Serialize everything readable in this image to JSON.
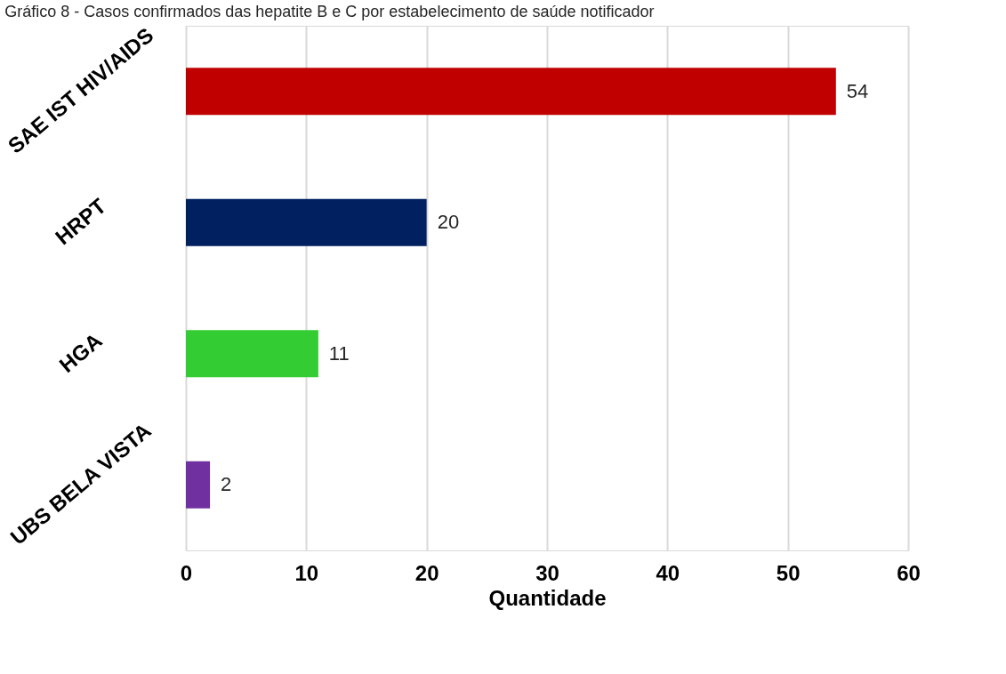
{
  "chart_data": {
    "type": "bar",
    "orientation": "horizontal",
    "title": "Gráfico 8 - Casos confirmados das hepatite B e C por estabelecimento de saúde notificador",
    "xlabel": "Quantidade",
    "categories": [
      "SAE IST HIV/AIDS",
      "HRPT",
      "HGA",
      "UBS BELA VISTA"
    ],
    "values": [
      54,
      20,
      11,
      2
    ],
    "colors": [
      "#c00000",
      "#002060",
      "#33cc33",
      "#7030a0"
    ],
    "xlim": [
      0,
      60
    ],
    "xticks": [
      0,
      10,
      20,
      30,
      40,
      50,
      60
    ],
    "grid": "x",
    "data_labels": true
  }
}
